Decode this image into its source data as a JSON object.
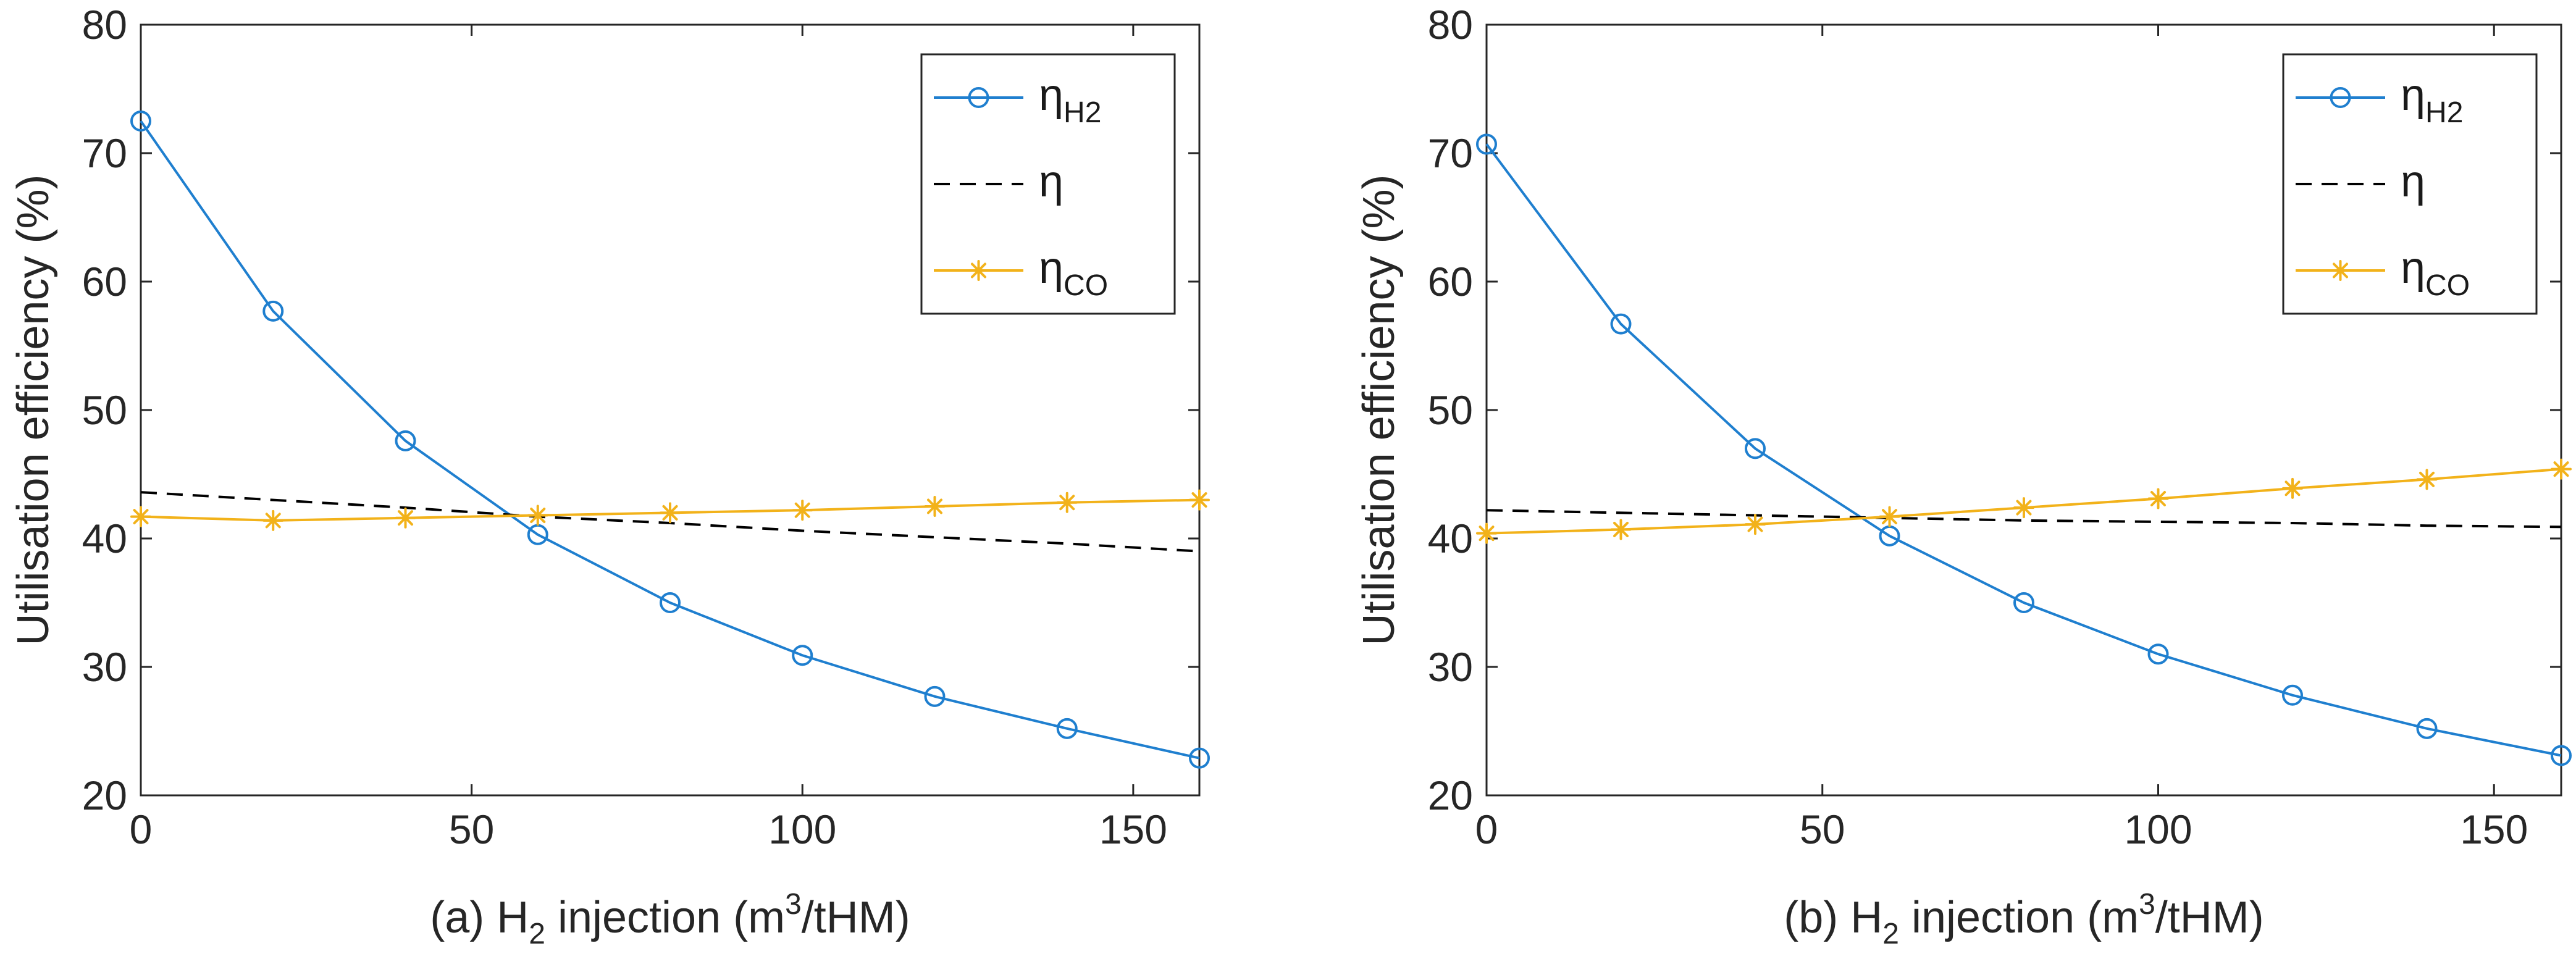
{
  "figure": {
    "colors": {
      "eta_h2": "#1f7fcf",
      "eta": "#000000",
      "eta_co": "#f2b21a",
      "axis": "#262626"
    }
  },
  "chart_data": [
    {
      "type": "line",
      "panel": "a",
      "xlabel_prefix": "(a) H",
      "xlabel_subscript": "2",
      "xlabel_middle": " injection (m",
      "xlabel_superscript": "3",
      "xlabel_suffix": "/tHM)",
      "ylabel": "Utilisation efficiency (%)",
      "xlim": [
        0,
        160
      ],
      "ylim": [
        20,
        80
      ],
      "xticks": [
        0,
        50,
        100,
        150
      ],
      "yticks": [
        20,
        30,
        40,
        50,
        60,
        70,
        80
      ],
      "xtick_labels": [
        "0",
        "50",
        "100",
        "150"
      ],
      "ytick_labels": [
        "20",
        "30",
        "40",
        "50",
        "60",
        "70",
        "80"
      ],
      "legend": {
        "position": "top-right",
        "entries": [
          {
            "symbol": "η",
            "subscript": "H2"
          },
          {
            "symbol": "η",
            "subscript": ""
          },
          {
            "symbol": "η",
            "subscript": "CO"
          }
        ]
      },
      "x": [
        0,
        20,
        40,
        60,
        80,
        100,
        120,
        140,
        160
      ],
      "series": [
        {
          "name": "ηH2",
          "style": "solid",
          "marker": "circle",
          "color": "#1f7fcf",
          "values": [
            72.5,
            57.7,
            47.6,
            40.3,
            35.0,
            30.9,
            27.7,
            25.2,
            22.9
          ]
        },
        {
          "name": "η",
          "style": "dashed",
          "marker": "none",
          "color": "#000000",
          "values": [
            43.6,
            43.0,
            42.4,
            41.7,
            41.2,
            40.6,
            40.1,
            39.6,
            39.0
          ]
        },
        {
          "name": "ηCO",
          "style": "solid",
          "marker": "star",
          "color": "#f2b21a",
          "values": [
            41.7,
            41.4,
            41.6,
            41.8,
            42.0,
            42.2,
            42.5,
            42.8,
            43.0
          ]
        }
      ]
    },
    {
      "type": "line",
      "panel": "b",
      "xlabel_prefix": "(b) H",
      "xlabel_subscript": "2",
      "xlabel_middle": " injection (m",
      "xlabel_superscript": "3",
      "xlabel_suffix": "/tHM)",
      "ylabel": "Utilisation efficiency (%)",
      "xlim": [
        0,
        160
      ],
      "ylim": [
        20,
        80
      ],
      "xticks": [
        0,
        50,
        100,
        150
      ],
      "yticks": [
        20,
        30,
        40,
        50,
        60,
        70,
        80
      ],
      "xtick_labels": [
        "0",
        "50",
        "100",
        "150"
      ],
      "ytick_labels": [
        "20",
        "30",
        "40",
        "50",
        "60",
        "70",
        "80"
      ],
      "legend": {
        "position": "top-right",
        "entries": [
          {
            "symbol": "η",
            "subscript": "H2"
          },
          {
            "symbol": "η",
            "subscript": ""
          },
          {
            "symbol": "η",
            "subscript": "CO"
          }
        ]
      },
      "x": [
        0,
        20,
        40,
        60,
        80,
        100,
        120,
        140,
        160
      ],
      "series": [
        {
          "name": "ηH2",
          "style": "solid",
          "marker": "circle",
          "color": "#1f7fcf",
          "values": [
            70.7,
            56.7,
            47.0,
            40.2,
            35.0,
            31.0,
            27.8,
            25.2,
            23.1
          ]
        },
        {
          "name": "η",
          "style": "dashed",
          "marker": "none",
          "color": "#000000",
          "values": [
            42.2,
            42.0,
            41.8,
            41.6,
            41.4,
            41.3,
            41.2,
            41.0,
            40.9
          ]
        },
        {
          "name": "ηCO",
          "style": "solid",
          "marker": "star",
          "color": "#f2b21a",
          "values": [
            40.4,
            40.7,
            41.1,
            41.7,
            42.4,
            43.1,
            43.9,
            44.6,
            45.4
          ]
        }
      ]
    }
  ]
}
